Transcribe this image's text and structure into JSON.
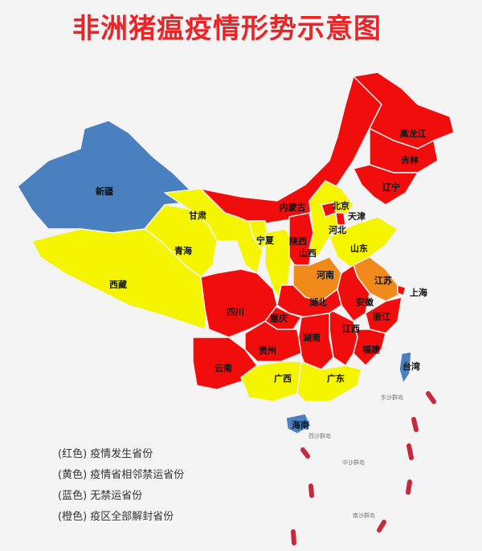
{
  "title": "非洲猪瘟疫情形势示意图",
  "colors": {
    "red": "#f20d0d",
    "yellow": "#f5f500",
    "blue": "#4a7fc0",
    "orange": "#f08a1a",
    "title": "#e8262a",
    "dash": "#c8283c"
  },
  "provinces": [
    {
      "name": "新疆",
      "status": "blue"
    },
    {
      "name": "西藏",
      "status": "yellow"
    },
    {
      "name": "青海",
      "status": "yellow"
    },
    {
      "name": "甘肃",
      "status": "yellow"
    },
    {
      "name": "内蒙古",
      "status": "red"
    },
    {
      "name": "黑龙江",
      "status": "red"
    },
    {
      "name": "吉林",
      "status": "red"
    },
    {
      "name": "辽宁",
      "status": "red"
    },
    {
      "name": "宁夏",
      "status": "yellow"
    },
    {
      "name": "陕西",
      "status": "yellow"
    },
    {
      "name": "山西",
      "status": "red"
    },
    {
      "name": "河北",
      "status": "yellow"
    },
    {
      "name": "北京",
      "status": "red"
    },
    {
      "name": "天津",
      "status": "red"
    },
    {
      "name": "山东",
      "status": "yellow"
    },
    {
      "name": "河南",
      "status": "orange"
    },
    {
      "name": "江苏",
      "status": "orange"
    },
    {
      "name": "安徽",
      "status": "red"
    },
    {
      "name": "上海",
      "status": "red"
    },
    {
      "name": "浙江",
      "status": "red"
    },
    {
      "name": "福建",
      "status": "red"
    },
    {
      "name": "江西",
      "status": "red"
    },
    {
      "name": "湖北",
      "status": "red"
    },
    {
      "name": "湖南",
      "status": "red"
    },
    {
      "name": "重庆",
      "status": "red"
    },
    {
      "name": "四川",
      "status": "red"
    },
    {
      "name": "贵州",
      "status": "red"
    },
    {
      "name": "云南",
      "status": "red"
    },
    {
      "name": "广西",
      "status": "yellow"
    },
    {
      "name": "广东",
      "status": "yellow"
    },
    {
      "name": "海南",
      "status": "blue"
    },
    {
      "name": "台湾",
      "status": "blue"
    }
  ],
  "islands": [
    "东沙群岛",
    "西沙群岛",
    "中沙群岛",
    "南沙群岛"
  ],
  "legend": [
    {
      "color": "(红色)",
      "text": "疫情发生省份"
    },
    {
      "color": "(黄色)",
      "text": "疫情省相邻禁运省份"
    },
    {
      "color": "(蓝色)",
      "text": "无禁运省份"
    },
    {
      "color": "(橙色)",
      "text": "疫区全部解封省份"
    }
  ]
}
